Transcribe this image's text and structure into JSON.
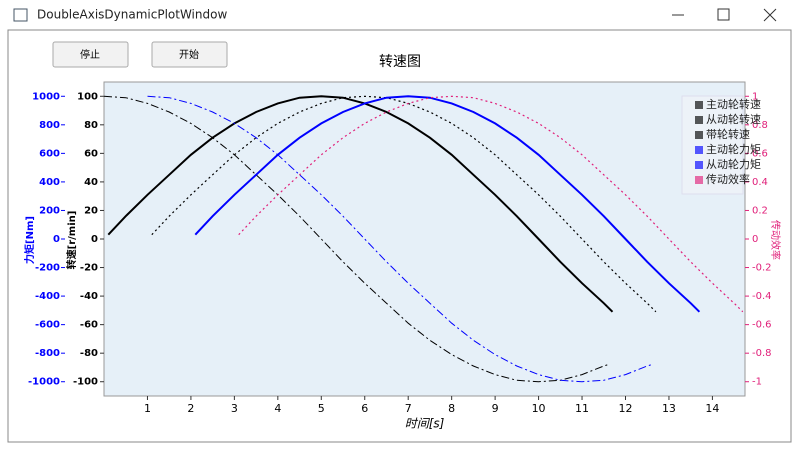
{
  "window_title": "DoubleAxisDynamicPlotWindow",
  "buttons": [
    "停止",
    "开始"
  ],
  "chart_data": {
    "type": "line",
    "title": "转速图",
    "x_label": "时间[s]",
    "y_label": "转速[r/min]",
    "y2_label": "力矩[Nm]",
    "y3_label": "传动效率",
    "y2_color": "#0000ff",
    "y3_color": "#e0207a",
    "xlim": [
      0,
      14.75
    ],
    "xticks": [
      1,
      2,
      3,
      4,
      5,
      6,
      7,
      8,
      9,
      10,
      11,
      12,
      13,
      14
    ],
    "ylim": [
      -110,
      110
    ],
    "yticks": [
      -100,
      -80,
      -60,
      -40,
      -20,
      0,
      20,
      40,
      60,
      80,
      100
    ],
    "y2lim": [
      -1100,
      1100
    ],
    "y2ticks": [
      -1000,
      -800,
      -600,
      -400,
      -200,
      0,
      200,
      400,
      600,
      800,
      1000
    ],
    "y3lim": [
      -1.1,
      1.1
    ],
    "y3ticks": [
      -1,
      -0.8,
      -0.6,
      -0.4,
      -0.2,
      0,
      0.2,
      0.4,
      0.6,
      0.8,
      1
    ],
    "legend": "upper right",
    "series": [
      {
        "name": "主动轮转速",
        "color": "#000000",
        "style": "solid",
        "width": 2,
        "x": [
          0.1,
          0.5,
          1,
          1.5,
          2,
          2.5,
          3,
          3.5,
          4,
          4.5,
          5,
          5.5,
          6,
          6.5,
          7,
          7.5,
          8,
          8.5,
          9,
          9.5,
          10,
          10.5,
          11,
          11.5,
          11.7
        ],
        "values": [
          3,
          16,
          31,
          45,
          59,
          71,
          81,
          89,
          95,
          99,
          100,
          99,
          95,
          89,
          81,
          71,
          59,
          45,
          31,
          16,
          0,
          -16,
          -31,
          -45,
          -51
        ]
      },
      {
        "name": "从动轮转速",
        "color": "#000000",
        "style": "dotted",
        "width": 1.2,
        "x": [
          1.1,
          1.5,
          2,
          2.5,
          3,
          3.5,
          4,
          4.5,
          5,
          5.5,
          6,
          6.5,
          7,
          7.5,
          8,
          8.5,
          9,
          9.5,
          10,
          10.5,
          11,
          11.5,
          12,
          12.5,
          12.7
        ],
        "values": [
          3,
          16,
          31,
          45,
          59,
          71,
          81,
          89,
          95,
          99,
          100,
          99,
          95,
          89,
          81,
          71,
          59,
          45,
          31,
          16,
          0,
          -16,
          -31,
          -45,
          -51
        ]
      },
      {
        "name": "带轮转速",
        "color": "#000000",
        "style": "dashdot",
        "width": 1,
        "x": [
          0,
          0.5,
          1,
          1.5,
          2,
          2.5,
          3,
          3.5,
          4,
          4.5,
          5,
          5.5,
          6,
          6.5,
          7,
          7.5,
          8,
          8.5,
          9,
          9.5,
          10,
          10.5,
          11,
          11.5,
          11.6
        ],
        "values": [
          100,
          99,
          95,
          89,
          81,
          71,
          59,
          45,
          31,
          16,
          0,
          -16,
          -31,
          -45,
          -59,
          -71,
          -81,
          -89,
          -95,
          -99,
          -100,
          -99,
          -95,
          -89,
          -88
        ]
      },
      {
        "name": "主动轮力矩",
        "color": "#0000ff",
        "style": "solid",
        "width": 2,
        "axis": "y2",
        "x": [
          2.1,
          2.5,
          3,
          3.5,
          4,
          4.5,
          5,
          5.5,
          6,
          6.5,
          7,
          7.5,
          8,
          8.5,
          9,
          9.5,
          10,
          10.5,
          11,
          11.5,
          12,
          12.5,
          13,
          13.5,
          13.7
        ],
        "values": [
          30,
          160,
          310,
          450,
          590,
          710,
          810,
          890,
          950,
          990,
          1000,
          990,
          950,
          890,
          810,
          710,
          590,
          450,
          310,
          160,
          0,
          -160,
          -310,
          -450,
          -510
        ]
      },
      {
        "name": "从动轮力矩",
        "color": "#0000ff",
        "style": "dashdot",
        "width": 1,
        "axis": "y2",
        "x": [
          1,
          1.5,
          2,
          2.5,
          3,
          3.5,
          4,
          4.5,
          5,
          5.5,
          6,
          6.5,
          7,
          7.5,
          8,
          8.5,
          9,
          9.5,
          10,
          10.5,
          11,
          11.5,
          12,
          12.5,
          12.6
        ],
        "values": [
          1000,
          990,
          950,
          890,
          810,
          710,
          590,
          450,
          310,
          160,
          0,
          -160,
          -310,
          -450,
          -590,
          -710,
          -810,
          -890,
          -950,
          -990,
          -1000,
          -990,
          -950,
          -890,
          -880
        ]
      },
      {
        "name": "传动效率",
        "color": "#e0207a",
        "style": "dotted",
        "width": 1.2,
        "axis": "y3",
        "x": [
          3.1,
          3.5,
          4,
          4.5,
          5,
          5.5,
          6,
          6.5,
          7,
          7.5,
          8,
          8.5,
          9,
          9.5,
          10,
          10.5,
          11,
          11.5,
          12,
          12.5,
          13,
          13.5,
          14,
          14.5,
          14.7
        ],
        "values": [
          0.03,
          0.16,
          0.31,
          0.45,
          0.59,
          0.71,
          0.81,
          0.89,
          0.95,
          0.99,
          1,
          0.99,
          0.95,
          0.89,
          0.81,
          0.71,
          0.59,
          0.45,
          0.31,
          0.16,
          0,
          -0.16,
          -0.31,
          -0.45,
          -0.51
        ]
      }
    ]
  }
}
